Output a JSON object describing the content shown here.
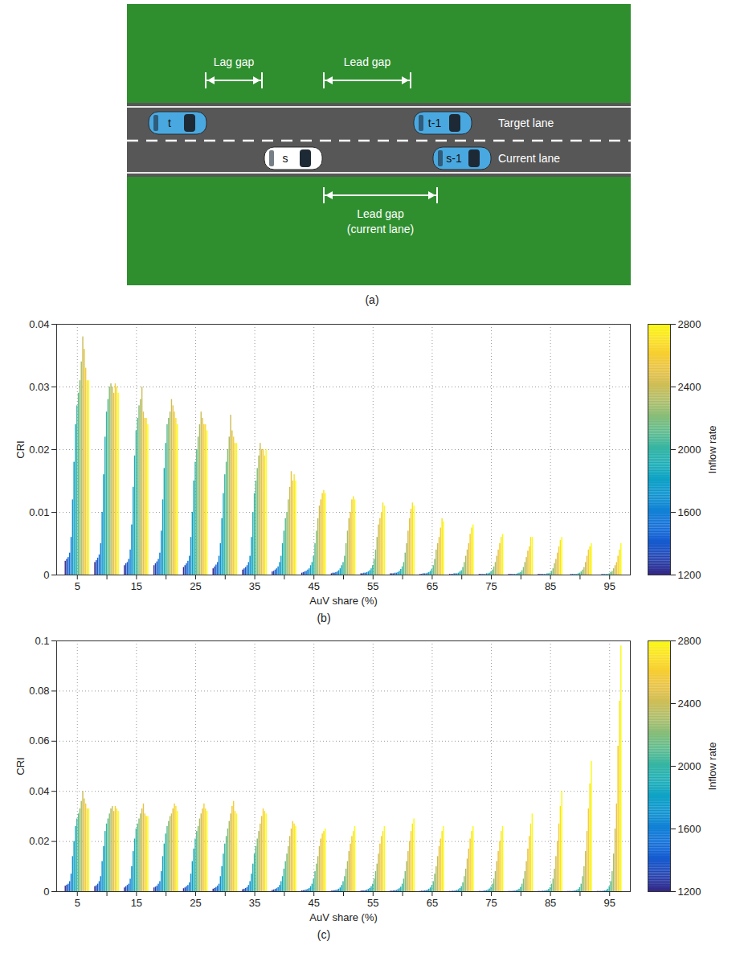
{
  "diagram": {
    "panel_label": "(a)",
    "lanes": [
      {
        "name": "Target lane",
        "vehicles": [
          {
            "label": "t",
            "color": "#4aa8e0"
          },
          {
            "label": "t-1",
            "color": "#4aa8e0"
          }
        ]
      },
      {
        "name": "Current lane",
        "vehicles": [
          {
            "label": "s",
            "color": "#ffffff"
          },
          {
            "label": "s-1",
            "color": "#4aa8e0"
          }
        ]
      }
    ],
    "gaps": {
      "lag_gap": [
        "Lag gap"
      ],
      "lead_gap": [
        "Lead gap"
      ],
      "lead_gap_current": [
        "Lead gap",
        "(current lane)"
      ]
    }
  },
  "chart_data": [
    {
      "type": "bar",
      "panel_label": "(b)",
      "x_label": "AuV share (%)",
      "y_label": "CRI",
      "categories": [
        5,
        null,
        15,
        null,
        25,
        null,
        35,
        null,
        45,
        null,
        55,
        null,
        65,
        null,
        75,
        null,
        85,
        null,
        95
      ],
      "inflow_rates": [
        1200,
        1300,
        1400,
        1500,
        1600,
        1700,
        1800,
        1900,
        2000,
        2100,
        2200,
        2300,
        2400,
        2500,
        2600,
        2700,
        2800
      ],
      "values": [
        [
          0.0022,
          0.0025,
          0.0028,
          0.0035,
          0.006,
          0.012,
          0.018,
          0.024,
          0.027,
          0.029,
          0.031,
          0.034,
          0.038,
          0.036,
          0.033,
          0.031,
          0.031
        ],
        [
          0.002,
          0.0023,
          0.0027,
          0.0032,
          0.005,
          0.01,
          0.016,
          0.022,
          0.026,
          0.028,
          0.03,
          0.0305,
          0.03,
          0.029,
          0.0305,
          0.03,
          0.029
        ],
        [
          0.0015,
          0.0018,
          0.002,
          0.0025,
          0.004,
          0.008,
          0.014,
          0.019,
          0.023,
          0.025,
          0.027,
          0.028,
          0.03,
          0.026,
          0.025,
          0.025,
          0.024
        ],
        [
          0.0015,
          0.0018,
          0.0021,
          0.0025,
          0.0035,
          0.007,
          0.012,
          0.017,
          0.021,
          0.024,
          0.025,
          0.026,
          0.028,
          0.027,
          0.026,
          0.025,
          0.024
        ],
        [
          0.0012,
          0.0015,
          0.0018,
          0.0022,
          0.003,
          0.006,
          0.01,
          0.015,
          0.018,
          0.02,
          0.022,
          0.024,
          0.026,
          0.025,
          0.024,
          0.024,
          0.023
        ],
        [
          0.001,
          0.0013,
          0.0016,
          0.002,
          0.003,
          0.005,
          0.009,
          0.013,
          0.016,
          0.018,
          0.02,
          0.022,
          0.0255,
          0.023,
          0.022,
          0.021,
          0.021
        ],
        [
          0.0008,
          0.001,
          0.0012,
          0.0015,
          0.002,
          0.003,
          0.006,
          0.01,
          0.013,
          0.015,
          0.017,
          0.019,
          0.021,
          0.02,
          0.02,
          0.019,
          0.02
        ],
        [
          0.0005,
          0.0006,
          0.0008,
          0.001,
          0.0013,
          0.002,
          0.003,
          0.005,
          0.007,
          0.009,
          0.01,
          0.012,
          0.014,
          0.0165,
          0.015,
          0.016,
          0.015
        ],
        [
          0.0003,
          0.0004,
          0.0005,
          0.0006,
          0.0008,
          0.001,
          0.0015,
          0.002,
          0.003,
          0.005,
          0.007,
          0.009,
          0.011,
          0.012,
          0.013,
          0.0135,
          0.013
        ],
        [
          0.0002,
          0.0003,
          0.0003,
          0.0004,
          0.0005,
          0.0007,
          0.001,
          0.0015,
          0.002,
          0.003,
          0.005,
          0.007,
          0.009,
          0.01,
          0.012,
          0.0125,
          0.012
        ],
        [
          0.0002,
          0.0002,
          0.0003,
          0.0003,
          0.0004,
          0.0005,
          0.0007,
          0.001,
          0.0015,
          0.0025,
          0.004,
          0.006,
          0.008,
          0.009,
          0.01,
          0.0115,
          0.011
        ],
        [
          0.0002,
          0.0002,
          0.0002,
          0.0003,
          0.0003,
          0.0004,
          0.0006,
          0.0009,
          0.0013,
          0.002,
          0.0035,
          0.005,
          0.007,
          0.009,
          0.0105,
          0.0115,
          0.011
        ],
        [
          0.0001,
          0.0001,
          0.0002,
          0.0002,
          0.0002,
          0.0003,
          0.0004,
          0.0006,
          0.0009,
          0.0015,
          0.0025,
          0.004,
          0.005,
          0.006,
          0.0075,
          0.009,
          0.0085
        ],
        [
          0.0001,
          0.0001,
          0.0001,
          0.0002,
          0.0002,
          0.0002,
          0.0003,
          0.0005,
          0.0007,
          0.0012,
          0.002,
          0.003,
          0.004,
          0.005,
          0.0065,
          0.0075,
          0.008
        ],
        [
          0.0001,
          0.0001,
          0.0001,
          0.0001,
          0.0001,
          0.0002,
          0.0002,
          0.0003,
          0.0005,
          0.0008,
          0.0013,
          0.002,
          0.003,
          0.004,
          0.005,
          0.006,
          0.0065
        ],
        [
          0.0001,
          0.0001,
          0.0001,
          0.0001,
          0.0001,
          0.0001,
          0.0002,
          0.0003,
          0.0004,
          0.0007,
          0.0012,
          0.002,
          0.0028,
          0.0038,
          0.0045,
          0.006,
          0.006
        ],
        [
          0.0001,
          0.0001,
          0.0001,
          0.0001,
          0.0001,
          0.0001,
          0.0002,
          0.0002,
          0.0003,
          0.0006,
          0.001,
          0.0018,
          0.0025,
          0.0035,
          0.0045,
          0.0055,
          0.006
        ],
        [
          0,
          0,
          0.0001,
          0.0001,
          0.0001,
          0.0001,
          0.0001,
          0.0002,
          0.0003,
          0.0005,
          0.0008,
          0.0012,
          0.002,
          0.003,
          0.004,
          0.0045,
          0.005
        ],
        [
          0,
          0,
          0,
          0.0001,
          0.0001,
          0.0001,
          0.0001,
          0.0001,
          0.0002,
          0.0004,
          0.0006,
          0.001,
          0.0015,
          0.002,
          0.003,
          0.004,
          0.005
        ]
      ],
      "ylim": [
        0,
        0.04
      ],
      "yticks": [
        0,
        0.01,
        0.02,
        0.03,
        0.04
      ],
      "grid": true,
      "colorbar": {
        "label": "Inflow rate",
        "range": [
          1200,
          2800
        ],
        "ticks": [
          1200,
          1600,
          2000,
          2400,
          2800
        ]
      }
    },
    {
      "type": "bar",
      "panel_label": "(c)",
      "x_label": "AuV share (%)",
      "y_label": "CRI",
      "categories": [
        5,
        null,
        15,
        null,
        25,
        null,
        35,
        null,
        45,
        null,
        55,
        null,
        65,
        null,
        75,
        null,
        85,
        null,
        95
      ],
      "inflow_rates": [
        1200,
        1300,
        1400,
        1500,
        1600,
        1700,
        1800,
        1900,
        2000,
        2100,
        2200,
        2300,
        2400,
        2500,
        2600,
        2700,
        2800
      ],
      "values": [
        [
          0.0022,
          0.0026,
          0.003,
          0.004,
          0.007,
          0.014,
          0.02,
          0.026,
          0.029,
          0.031,
          0.033,
          0.036,
          0.04,
          0.037,
          0.035,
          0.033,
          0.033
        ],
        [
          0.002,
          0.0024,
          0.003,
          0.004,
          0.006,
          0.012,
          0.018,
          0.024,
          0.027,
          0.029,
          0.031,
          0.033,
          0.034,
          0.032,
          0.034,
          0.033,
          0.032
        ],
        [
          0.0015,
          0.002,
          0.0025,
          0.003,
          0.005,
          0.01,
          0.016,
          0.021,
          0.025,
          0.027,
          0.029,
          0.031,
          0.033,
          0.035,
          0.031,
          0.03,
          0.03
        ],
        [
          0.0015,
          0.0018,
          0.0022,
          0.003,
          0.004,
          0.008,
          0.014,
          0.019,
          0.023,
          0.026,
          0.028,
          0.03,
          0.031,
          0.033,
          0.035,
          0.034,
          0.032
        ],
        [
          0.0012,
          0.0015,
          0.002,
          0.0025,
          0.0035,
          0.007,
          0.012,
          0.017,
          0.021,
          0.024,
          0.026,
          0.029,
          0.031,
          0.033,
          0.035,
          0.033,
          0.032
        ],
        [
          0.001,
          0.0013,
          0.0017,
          0.0022,
          0.003,
          0.006,
          0.01,
          0.015,
          0.019,
          0.022,
          0.025,
          0.028,
          0.031,
          0.034,
          0.036,
          0.032,
          0.031
        ],
        [
          0.0008,
          0.001,
          0.0013,
          0.0017,
          0.0025,
          0.004,
          0.007,
          0.011,
          0.015,
          0.018,
          0.021,
          0.024,
          0.027,
          0.03,
          0.033,
          0.032,
          0.031
        ],
        [
          0.0005,
          0.0007,
          0.0009,
          0.0012,
          0.0016,
          0.0025,
          0.004,
          0.006,
          0.009,
          0.012,
          0.015,
          0.018,
          0.022,
          0.025,
          0.028,
          0.027,
          0.026
        ],
        [
          0.0003,
          0.0004,
          0.0005,
          0.0007,
          0.0009,
          0.0013,
          0.002,
          0.003,
          0.005,
          0.008,
          0.011,
          0.014,
          0.018,
          0.021,
          0.023,
          0.024,
          0.025
        ],
        [
          0.0002,
          0.0003,
          0.0004,
          0.0005,
          0.0007,
          0.001,
          0.0015,
          0.0025,
          0.004,
          0.006,
          0.009,
          0.012,
          0.016,
          0.019,
          0.022,
          0.024,
          0.026
        ],
        [
          0.0002,
          0.0003,
          0.0003,
          0.0004,
          0.0006,
          0.0009,
          0.0013,
          0.002,
          0.003,
          0.005,
          0.008,
          0.011,
          0.015,
          0.019,
          0.022,
          0.024,
          0.026
        ],
        [
          0.0002,
          0.0002,
          0.0003,
          0.0004,
          0.0005,
          0.0008,
          0.0012,
          0.0018,
          0.003,
          0.005,
          0.008,
          0.012,
          0.016,
          0.02,
          0.024,
          0.027,
          0.029
        ],
        [
          0.0001,
          0.0002,
          0.0002,
          0.0003,
          0.0004,
          0.0006,
          0.001,
          0.0015,
          0.0025,
          0.004,
          0.007,
          0.01,
          0.014,
          0.018,
          0.021,
          0.024,
          0.026
        ],
        [
          0.0001,
          0.0001,
          0.0002,
          0.0002,
          0.0003,
          0.0005,
          0.0008,
          0.0013,
          0.002,
          0.0035,
          0.006,
          0.009,
          0.013,
          0.017,
          0.021,
          0.024,
          0.026
        ],
        [
          0.0001,
          0.0001,
          0.0001,
          0.0002,
          0.0003,
          0.0004,
          0.0007,
          0.0011,
          0.0018,
          0.003,
          0.005,
          0.008,
          0.012,
          0.016,
          0.02,
          0.024,
          0.026
        ],
        [
          0.0001,
          0.0001,
          0.0001,
          0.0002,
          0.0002,
          0.0004,
          0.0006,
          0.001,
          0.0017,
          0.003,
          0.005,
          0.008,
          0.012,
          0.017,
          0.022,
          0.027,
          0.031
        ],
        [
          0.0001,
          0.0001,
          0.0001,
          0.0002,
          0.0002,
          0.0003,
          0.0005,
          0.0009,
          0.0016,
          0.003,
          0.005,
          0.009,
          0.014,
          0.02,
          0.027,
          0.034,
          0.04
        ],
        [
          0.0001,
          0.0001,
          0.0001,
          0.0001,
          0.0002,
          0.0003,
          0.0005,
          0.0009,
          0.0016,
          0.003,
          0.006,
          0.01,
          0.016,
          0.024,
          0.033,
          0.043,
          0.052
        ],
        [
          0.0001,
          0.0001,
          0.0001,
          0.0001,
          0.0002,
          0.0003,
          0.0005,
          0.001,
          0.002,
          0.004,
          0.008,
          0.015,
          0.025,
          0.035,
          0.058,
          0.076,
          0.098
        ]
      ],
      "ylim": [
        0,
        0.1
      ],
      "yticks": [
        0,
        0.02,
        0.04,
        0.06,
        0.08,
        0.1
      ],
      "grid": true,
      "colorbar": {
        "label": "Inflow rate",
        "range": [
          1200,
          2800
        ],
        "ticks": [
          1200,
          1600,
          2000,
          2400,
          2800
        ]
      }
    }
  ]
}
